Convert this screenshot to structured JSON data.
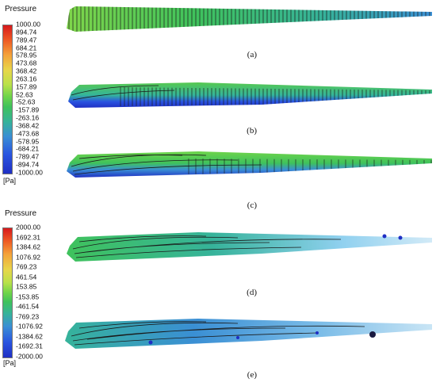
{
  "legends": [
    {
      "title": "Pressure",
      "unit": "[Pa]",
      "ticks": [
        "1000.00",
        "894.74",
        "789.47",
        "684.21",
        "578.95",
        "473.68",
        "368.42",
        "263.16",
        "157.89",
        "52.63",
        "-52.63",
        "-157.89",
        "-263.16",
        "-368.42",
        "-473.68",
        "-578.95",
        "-684.21",
        "-789.47",
        "-894.74",
        "-1000.00"
      ]
    },
    {
      "title": "Pressure",
      "unit": "[Pa]",
      "ticks": [
        "2000.00",
        "1692.31",
        "1384.62",
        "1076.92",
        "769.23",
        "461.54",
        "153.85",
        "-153.85",
        "-461.54",
        "-769.23",
        "-1076.92",
        "-1384.62",
        "-1692.31",
        "-2000.00"
      ]
    }
  ],
  "panels": [
    {
      "label": "(a)"
    },
    {
      "label": "(b)"
    },
    {
      "label": "(c)"
    },
    {
      "label": "(d)"
    },
    {
      "label": "(e)"
    }
  ],
  "colors": {
    "scale": [
      "#d7191c",
      "#f06d24",
      "#f4a23a",
      "#e8d64a",
      "#b9e14a",
      "#6fd44a",
      "#3fc25c",
      "#36b39a",
      "#3a8fd4",
      "#2a55e0",
      "#1f2fc4"
    ],
    "streamline": "#1a1a1a"
  }
}
